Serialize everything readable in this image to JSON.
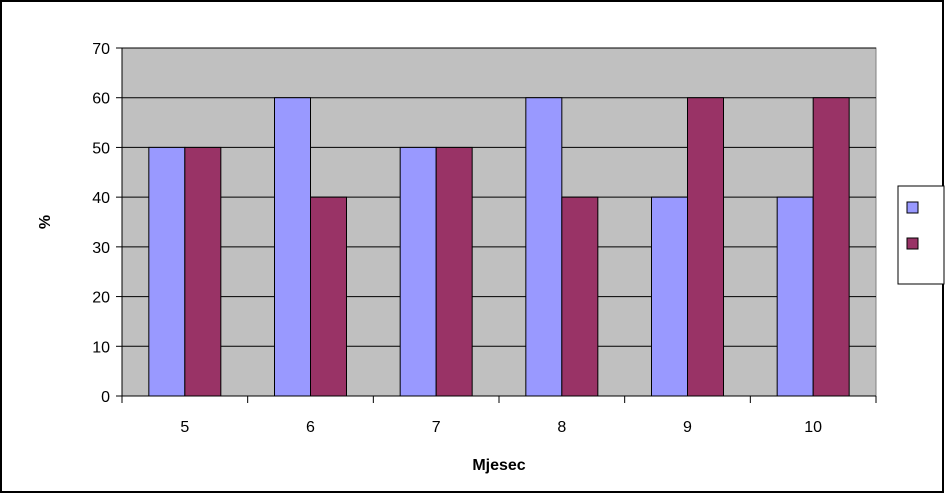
{
  "chart_data": {
    "type": "bar",
    "xlabel": "Mjesec",
    "ylabel": "%",
    "categories": [
      "5",
      "6",
      "7",
      "8",
      "9",
      "10"
    ],
    "series": [
      {
        "values": [
          50,
          60,
          50,
          60,
          40,
          40
        ],
        "color": "#9999ff"
      },
      {
        "values": [
          50,
          40,
          50,
          40,
          60,
          60
        ],
        "color": "#993366"
      }
    ],
    "ylim": [
      0,
      70
    ],
    "yticks": [
      0,
      10,
      20,
      30,
      40,
      50,
      60,
      70
    ],
    "grid": true,
    "plot_background": "#c0c0c0",
    "legend_position": "right"
  }
}
